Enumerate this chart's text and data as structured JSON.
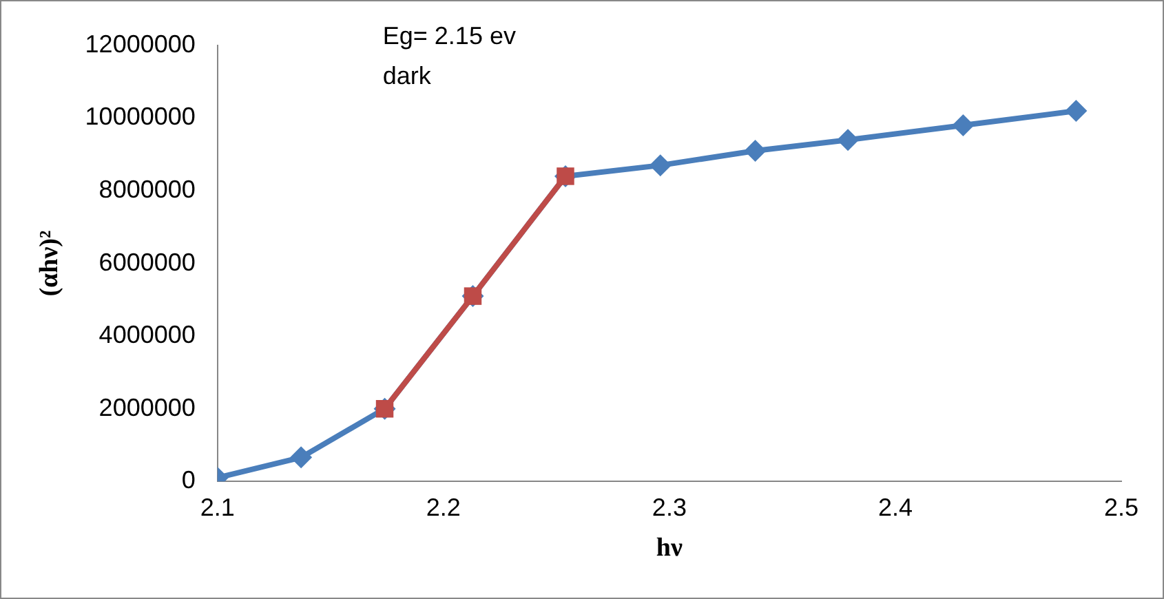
{
  "chart_data": {
    "type": "line",
    "xlabel": "hν",
    "ylabel": "(αhν)²",
    "annotations": [
      "Eg= 2.15 ev",
      "dark"
    ],
    "xlim": [
      2.1,
      2.5
    ],
    "xticks": [
      2.1,
      2.2,
      2.3,
      2.4,
      2.5
    ],
    "ylim": [
      0,
      12000000
    ],
    "yticks": [
      0,
      2000000,
      4000000,
      6000000,
      8000000,
      10000000,
      12000000
    ],
    "grid": false,
    "legend": false,
    "series": [
      {
        "color": "#4a7ebb",
        "marker": "diamond",
        "x": [
          2.1,
          2.137,
          2.174,
          2.213,
          2.254,
          2.296,
          2.338,
          2.379,
          2.43,
          2.48
        ],
        "values": [
          100000,
          660000,
          2000000,
          5100000,
          8400000,
          8700000,
          9100000,
          9400000,
          9800000,
          10200000
        ]
      },
      {
        "color": "#be4b48",
        "marker": "square",
        "x": [
          2.174,
          2.213,
          2.254
        ],
        "values": [
          2000000,
          5100000,
          8400000
        ]
      }
    ]
  }
}
